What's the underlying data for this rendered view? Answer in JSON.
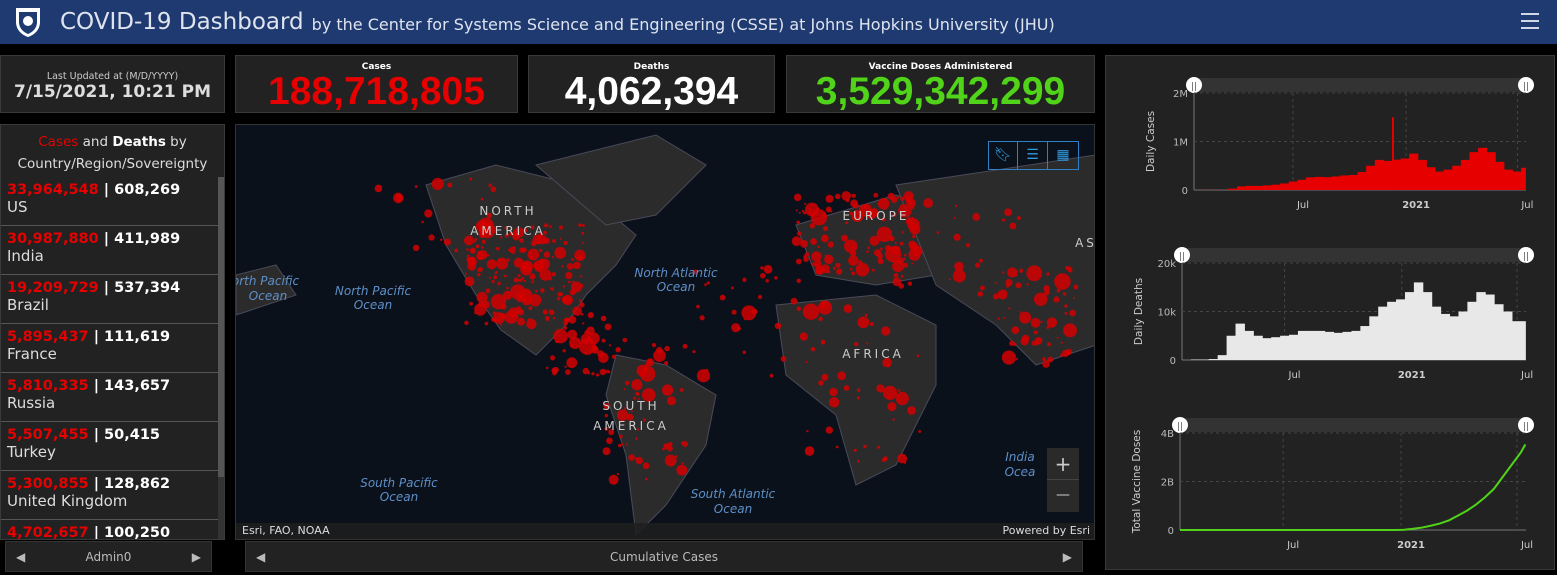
{
  "header": {
    "title": "COVID-19 Dashboard",
    "subtitle": "by the Center for Systems Science and Engineering (CSSE) at Johns Hopkins University (JHU)"
  },
  "updated": {
    "label": "Last Updated at (M/D/YYYY)",
    "value": "7/15/2021, 10:21 PM"
  },
  "stats": {
    "cases_label": "Cases",
    "cases": "188,718,805",
    "deaths_label": "Deaths",
    "deaths": "4,062,394",
    "vaccine_label": "Vaccine Doses Administered",
    "vaccine": "3,529,342,299"
  },
  "colors": {
    "cases": "#e60000",
    "deaths": "#ffffff",
    "vaccine": "#50d318",
    "header": "#1e3a70"
  },
  "list": {
    "title_cases": "Cases",
    "title_mid": " and ",
    "title_deaths": "Deaths",
    "title_rest": " by Country/Region/Sovereignty",
    "rows": [
      {
        "cases": "33,964,548",
        "deaths": "608,269",
        "name": "US"
      },
      {
        "cases": "30,987,880",
        "deaths": "411,989",
        "name": "India"
      },
      {
        "cases": "19,209,729",
        "deaths": "537,394",
        "name": "Brazil"
      },
      {
        "cases": "5,895,437",
        "deaths": "111,619",
        "name": "France"
      },
      {
        "cases": "5,810,335",
        "deaths": "143,657",
        "name": "Russia"
      },
      {
        "cases": "5,507,455",
        "deaths": "50,415",
        "name": "Turkey"
      },
      {
        "cases": "5,300,855",
        "deaths": "128,862",
        "name": "United Kingdom"
      },
      {
        "cases": "4,702,657",
        "deaths": "100,250",
        "name": ""
      }
    ]
  },
  "left_nav": {
    "label": "Admin0"
  },
  "map": {
    "attribution": "Esri, FAO, NOAA",
    "powered": "Powered by Esri",
    "bottom_label": "Cumulative Cases",
    "labels": [
      "NORTH",
      "AMERICA",
      "SOUTH",
      "AMERICA",
      "EUROPE",
      "AFRICA",
      "AS",
      "North Pacific",
      "Ocean",
      "North Pacific",
      "Ocean",
      "North Atlantic",
      "Ocean",
      "South Pacific",
      "Ocean",
      "South Atlantic",
      "Ocean",
      "India",
      "Ocea"
    ],
    "tools": [
      "bookmark-icon",
      "legend-list-icon",
      "basemap-gallery-icon"
    ],
    "zoom_in": "+",
    "zoom_out": "—"
  },
  "chart_data": [
    {
      "type": "bar",
      "ylabel": "Daily Cases",
      "yticks": [
        "0",
        "1M",
        "2M"
      ],
      "ylim": [
        0,
        2000000
      ],
      "xticks": [
        "Jul",
        "2021",
        "Jul"
      ],
      "color": "#e60000",
      "x": [
        "2020-01-22",
        "2020-02-05",
        "2020-02-19",
        "2020-03-04",
        "2020-03-18",
        "2020-04-01",
        "2020-04-15",
        "2020-04-29",
        "2020-05-13",
        "2020-05-27",
        "2020-06-10",
        "2020-06-24",
        "2020-07-08",
        "2020-07-22",
        "2020-08-05",
        "2020-08-19",
        "2020-09-02",
        "2020-09-16",
        "2020-09-30",
        "2020-10-14",
        "2020-10-28",
        "2020-11-11",
        "2020-11-25",
        "2020-12-09",
        "2020-12-23",
        "2021-01-06",
        "2021-01-20",
        "2021-02-03",
        "2021-02-17",
        "2021-03-03",
        "2021-03-17",
        "2021-03-31",
        "2021-04-14",
        "2021-04-28",
        "2021-05-12",
        "2021-05-26",
        "2021-06-09",
        "2021-06-23",
        "2021-07-07",
        "2021-07-14"
      ],
      "values": [
        1000,
        3000,
        2000,
        3000,
        30000,
        75000,
        85000,
        85000,
        95000,
        110000,
        135000,
        175000,
        210000,
        260000,
        270000,
        265000,
        280000,
        300000,
        310000,
        370000,
        500000,
        620000,
        600000,
        1500000,
        650000,
        750000,
        620000,
        470000,
        380000,
        420000,
        500000,
        620000,
        780000,
        870000,
        780000,
        580000,
        420000,
        380000,
        460000,
        550000
      ]
    },
    {
      "type": "bar",
      "ylabel": "Daily Deaths",
      "yticks": [
        "0",
        "10k",
        "20k"
      ],
      "ylim": [
        0,
        20000
      ],
      "xticks": [
        "Jul",
        "2021",
        "Jul"
      ],
      "color": "#e8e8e8",
      "values": [
        0,
        100,
        100,
        200,
        1000,
        5000,
        7500,
        6000,
        5000,
        4500,
        4700,
        5000,
        5200,
        6000,
        6000,
        6000,
        5800,
        5600,
        5800,
        6000,
        7000,
        9000,
        11000,
        12000,
        12500,
        14000,
        16000,
        14000,
        11000,
        9500,
        9000,
        10000,
        12000,
        14000,
        13500,
        11500,
        10000,
        8000,
        8000,
        8500
      ]
    },
    {
      "type": "line",
      "ylabel": "Total Vaccine Doses",
      "yticks": [
        "0",
        "2B",
        "4B"
      ],
      "ylim": [
        0,
        4000000000
      ],
      "xticks": [
        "Jul",
        "2021",
        "Jul"
      ],
      "color": "#50d318",
      "values": [
        0,
        0,
        0,
        0,
        0,
        0,
        0,
        0,
        0,
        0,
        0,
        0,
        0,
        0,
        0,
        0,
        0,
        0,
        0,
        0,
        0,
        0,
        0,
        0,
        0,
        10000000,
        50000000,
        100000000,
        180000000,
        270000000,
        400000000,
        600000000,
        800000000,
        1050000000,
        1350000000,
        1700000000,
        2200000000,
        2700000000,
        3200000000,
        3530000000
      ]
    }
  ]
}
